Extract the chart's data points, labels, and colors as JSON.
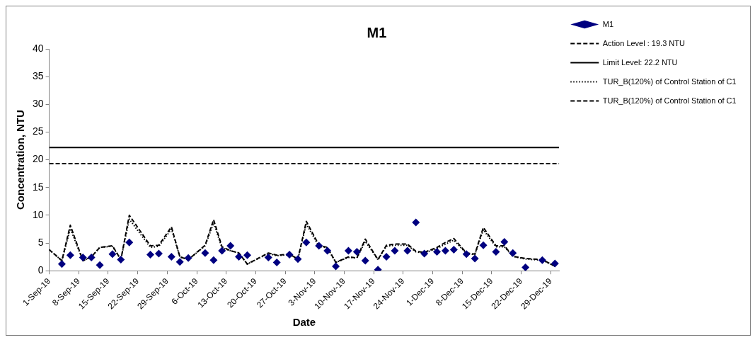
{
  "chart_data": {
    "type": "scatter",
    "title": "M1",
    "xlabel": "Date",
    "ylabel": "Concentration, NTU",
    "xlim": [
      "--09-01",
      "--12-31"
    ],
    "xticks": [
      {
        "value": "--09-01",
        "label": "1-Sep-19"
      },
      {
        "value": "--09-08",
        "label": "8-Sep-19"
      },
      {
        "value": "--09-15",
        "label": "15-Sep-19"
      },
      {
        "value": "--09-22",
        "label": "22-Sep-19"
      },
      {
        "value": "--09-29",
        "label": "29-Sep-19"
      },
      {
        "value": "--10-06",
        "label": "6-Oct-19"
      },
      {
        "value": "--10-13",
        "label": "13-Oct-19"
      },
      {
        "value": "--10-20",
        "label": "20-Oct-19"
      },
      {
        "value": "--10-27",
        "label": "27-Oct-19"
      },
      {
        "value": "--11-03",
        "label": "3-Nov-19"
      },
      {
        "value": "--11-10",
        "label": "10-Nov-19"
      },
      {
        "value": "--11-17",
        "label": "17-Nov-19"
      },
      {
        "value": "--11-24",
        "label": "24-Nov-19"
      },
      {
        "value": "--12-01",
        "label": "1-Dec-19"
      },
      {
        "value": "--12-08",
        "label": "8-Dec-19"
      },
      {
        "value": "--12-15",
        "label": "15-Dec-19"
      },
      {
        "value": "--12-22",
        "label": "22-Dec-19"
      },
      {
        "value": "--12-29",
        "label": "29-Dec-19"
      }
    ],
    "ylim": [
      0,
      40
    ],
    "yticks": [
      0,
      5,
      10,
      15,
      20,
      25,
      30,
      35,
      40
    ],
    "grid": false,
    "legend": "top right",
    "series": [
      {
        "name": "M1",
        "type": "scatter",
        "color": "#000080",
        "marker": "diamond",
        "x": [
          "--09-04",
          "--09-06",
          "--09-09",
          "--09-11",
          "--09-13",
          "--09-16",
          "--09-18",
          "--09-20",
          "--09-25",
          "--09-27",
          "--09-30",
          "--10-02",
          "--10-04",
          "--10-08",
          "--10-10",
          "--10-12",
          "--10-14",
          "--10-16",
          "--10-18",
          "--10-23",
          "--10-25",
          "--10-28",
          "--10-30",
          "--11-01",
          "--11-04",
          "--11-06",
          "--11-08",
          "--11-11",
          "--11-13",
          "--11-15",
          "--11-18",
          "--11-20",
          "--11-22",
          "--11-25",
          "--11-27",
          "--11-29",
          "--12-02",
          "--12-04",
          "--12-06",
          "--12-09",
          "--12-11",
          "--12-13",
          "--12-16",
          "--12-18",
          "--12-20",
          "--12-23",
          "--12-27",
          "--12-30"
        ],
        "values": [
          1.2,
          2.8,
          2.4,
          2.4,
          1.0,
          3.0,
          2.0,
          5.1,
          2.9,
          3.1,
          2.5,
          1.6,
          2.3,
          3.2,
          1.9,
          3.6,
          4.5,
          2.5,
          2.8,
          2.4,
          1.5,
          2.9,
          2.1,
          5.1,
          4.5,
          3.6,
          0.8,
          3.6,
          3.4,
          1.8,
          0.2,
          2.5,
          3.6,
          3.6,
          8.7,
          3.1,
          3.4,
          3.6,
          3.8,
          3.0,
          2.2,
          4.6,
          3.4,
          5.2,
          3.2,
          0.6,
          1.9,
          1.3
        ]
      },
      {
        "name": "Action Level : 19.3 NTU",
        "type": "line",
        "color": "#000000",
        "marker": "none",
        "line_style": "dashed",
        "x": [
          "--09-01",
          "--12-31"
        ],
        "values": [
          19.3,
          19.3
        ]
      },
      {
        "name": "Limit Level: 22.2 NTU",
        "type": "line",
        "color": "#000000",
        "marker": "none",
        "line_style": "solid",
        "x": [
          "--09-01",
          "--12-31"
        ],
        "values": [
          22.2,
          22.2
        ]
      },
      {
        "name": "TUR_B(120%) of Control Station of C1",
        "type": "line",
        "color": "#000000",
        "marker": "none",
        "line_style": "dotted",
        "x": [
          "--09-01",
          "--09-04",
          "--09-06",
          "--09-09",
          "--09-11",
          "--09-13",
          "--09-16",
          "--09-18",
          "--09-20",
          "--09-25",
          "--09-27",
          "--09-30",
          "--10-02",
          "--10-04",
          "--10-08",
          "--10-10",
          "--10-12",
          "--10-14",
          "--10-16",
          "--10-18",
          "--10-23",
          "--10-25",
          "--10-28",
          "--10-30",
          "--11-01",
          "--11-04",
          "--11-06",
          "--11-08",
          "--11-11",
          "--11-13",
          "--11-15",
          "--11-18",
          "--11-20",
          "--11-22",
          "--11-25",
          "--11-27",
          "--11-29",
          "--12-02",
          "--12-04",
          "--12-06",
          "--12-09",
          "--12-11",
          "--12-13",
          "--12-16",
          "--12-18",
          "--12-20",
          "--12-23",
          "--12-27",
          "--12-30"
        ],
        "values": [
          3.8,
          1.8,
          7.6,
          1.8,
          2.5,
          4.2,
          4.4,
          2.0,
          9.3,
          4.2,
          4.4,
          7.5,
          2.5,
          2.0,
          4.5,
          8.6,
          4.1,
          3.6,
          3.2,
          1.2,
          3.1,
          2.7,
          2.9,
          2.1,
          8.4,
          4.4,
          4.1,
          1.5,
          2.4,
          2.3,
          5.3,
          2.0,
          4.4,
          4.6,
          4.6,
          3.4,
          3.2,
          4.0,
          4.8,
          5.5,
          3.1,
          2.9,
          7.4,
          4.3,
          4.3,
          2.6,
          2.1,
          1.9,
          0.8
        ]
      },
      {
        "name": "TUR_B(120%) of Control Station of C1",
        "type": "line",
        "color": "#000000",
        "marker": "none",
        "line_style": "dashed",
        "x": [
          "--09-01",
          "--09-04",
          "--09-06",
          "--09-09",
          "--09-11",
          "--09-13",
          "--09-16",
          "--09-18",
          "--09-20",
          "--09-25",
          "--09-27",
          "--09-30",
          "--10-02",
          "--10-04",
          "--10-08",
          "--10-10",
          "--10-12",
          "--10-14",
          "--10-16",
          "--10-18",
          "--10-23",
          "--10-25",
          "--10-28",
          "--10-30",
          "--11-01",
          "--11-04",
          "--11-06",
          "--11-08",
          "--11-11",
          "--11-13",
          "--11-15",
          "--11-18",
          "--11-20",
          "--11-22",
          "--11-25",
          "--11-27",
          "--11-29",
          "--12-02",
          "--12-04",
          "--12-06",
          "--12-09",
          "--12-11",
          "--12-13",
          "--12-16",
          "--12-18",
          "--12-20",
          "--12-23",
          "--12-27",
          "--12-30"
        ],
        "values": [
          3.8,
          1.8,
          8.2,
          1.8,
          2.5,
          4.2,
          4.5,
          2.0,
          10.0,
          4.5,
          4.6,
          7.9,
          2.5,
          2.0,
          4.6,
          9.2,
          4.3,
          3.6,
          3.2,
          1.2,
          3.2,
          2.8,
          3.0,
          2.1,
          8.9,
          4.6,
          4.2,
          1.5,
          2.5,
          2.3,
          5.7,
          2.0,
          4.6,
          4.8,
          4.8,
          3.5,
          3.3,
          4.2,
          5.1,
          5.8,
          3.2,
          3.0,
          7.8,
          4.5,
          4.5,
          2.6,
          2.2,
          2.0,
          0.8
        ]
      }
    ]
  }
}
